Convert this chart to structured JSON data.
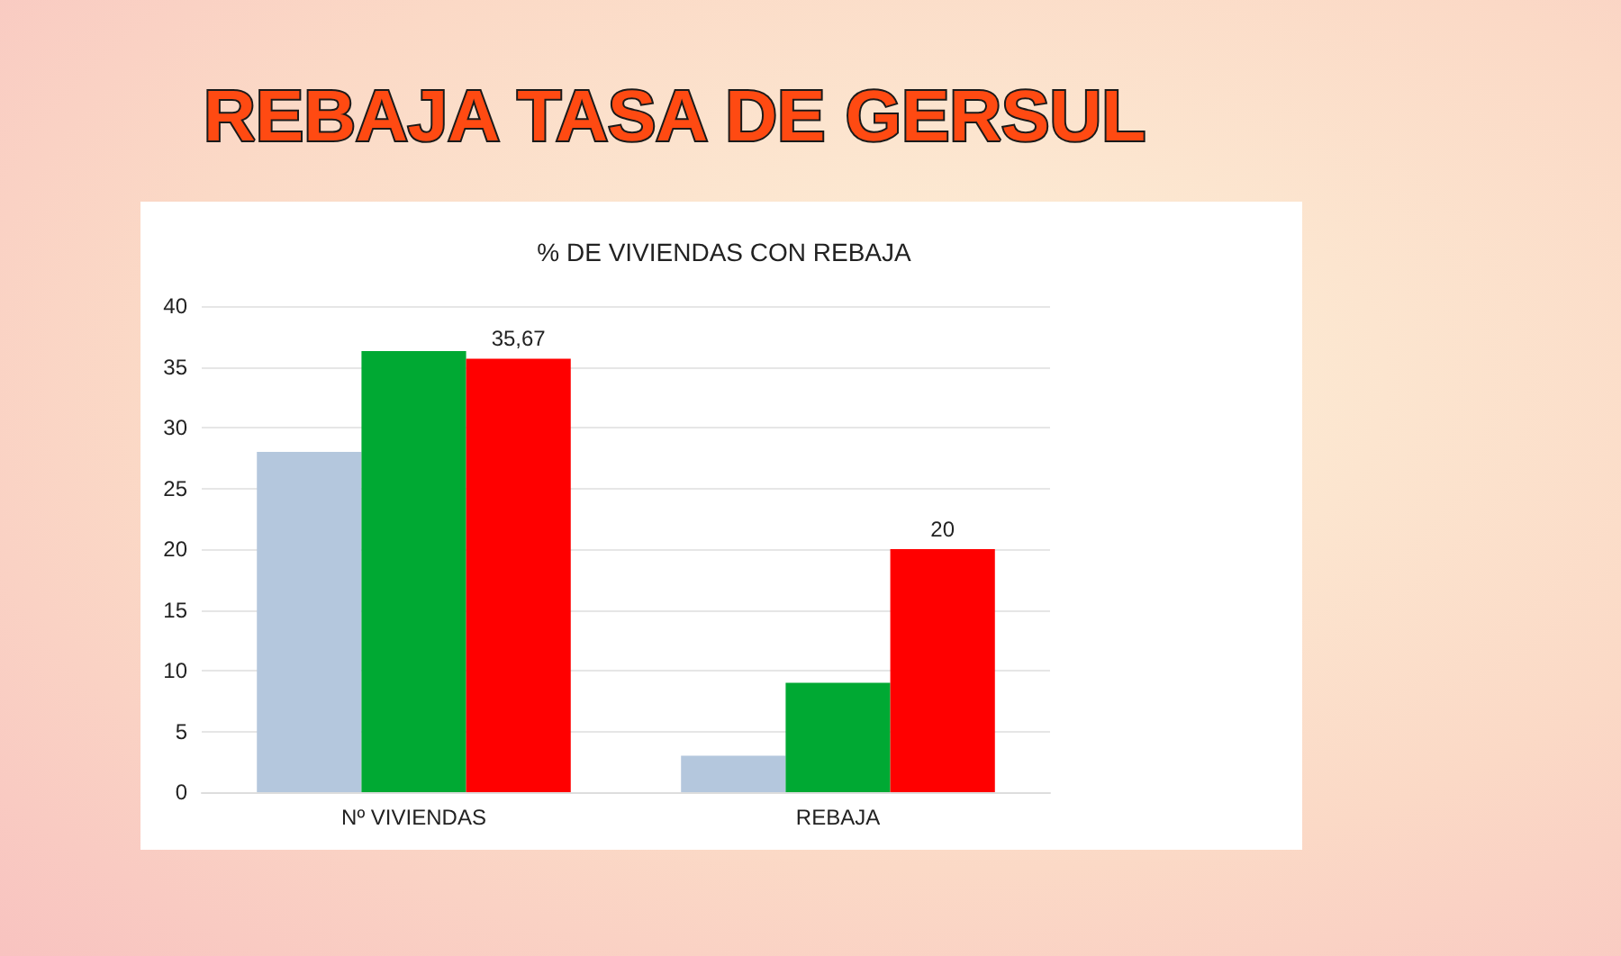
{
  "chart_data": {
    "type": "bar",
    "title": "REBAJA TASA DE GERSUL",
    "subtitle": "% DE VIVIENDAS CON REBAJA",
    "categories": [
      "Nº VIVIENDAS",
      "REBAJA"
    ],
    "series": [
      {
        "color": "#b4c7dd",
        "values": [
          28,
          3
        ]
      },
      {
        "color": "#00a933",
        "values": [
          36.3,
          9
        ]
      },
      {
        "color": "#ff0000",
        "values": [
          35.67,
          20
        ],
        "value_labels": [
          "35,67",
          "20"
        ]
      }
    ],
    "ylim": [
      0,
      40
    ],
    "yticks": [
      0,
      5,
      10,
      15,
      20,
      25,
      30,
      35,
      40
    ],
    "grid": "y"
  }
}
